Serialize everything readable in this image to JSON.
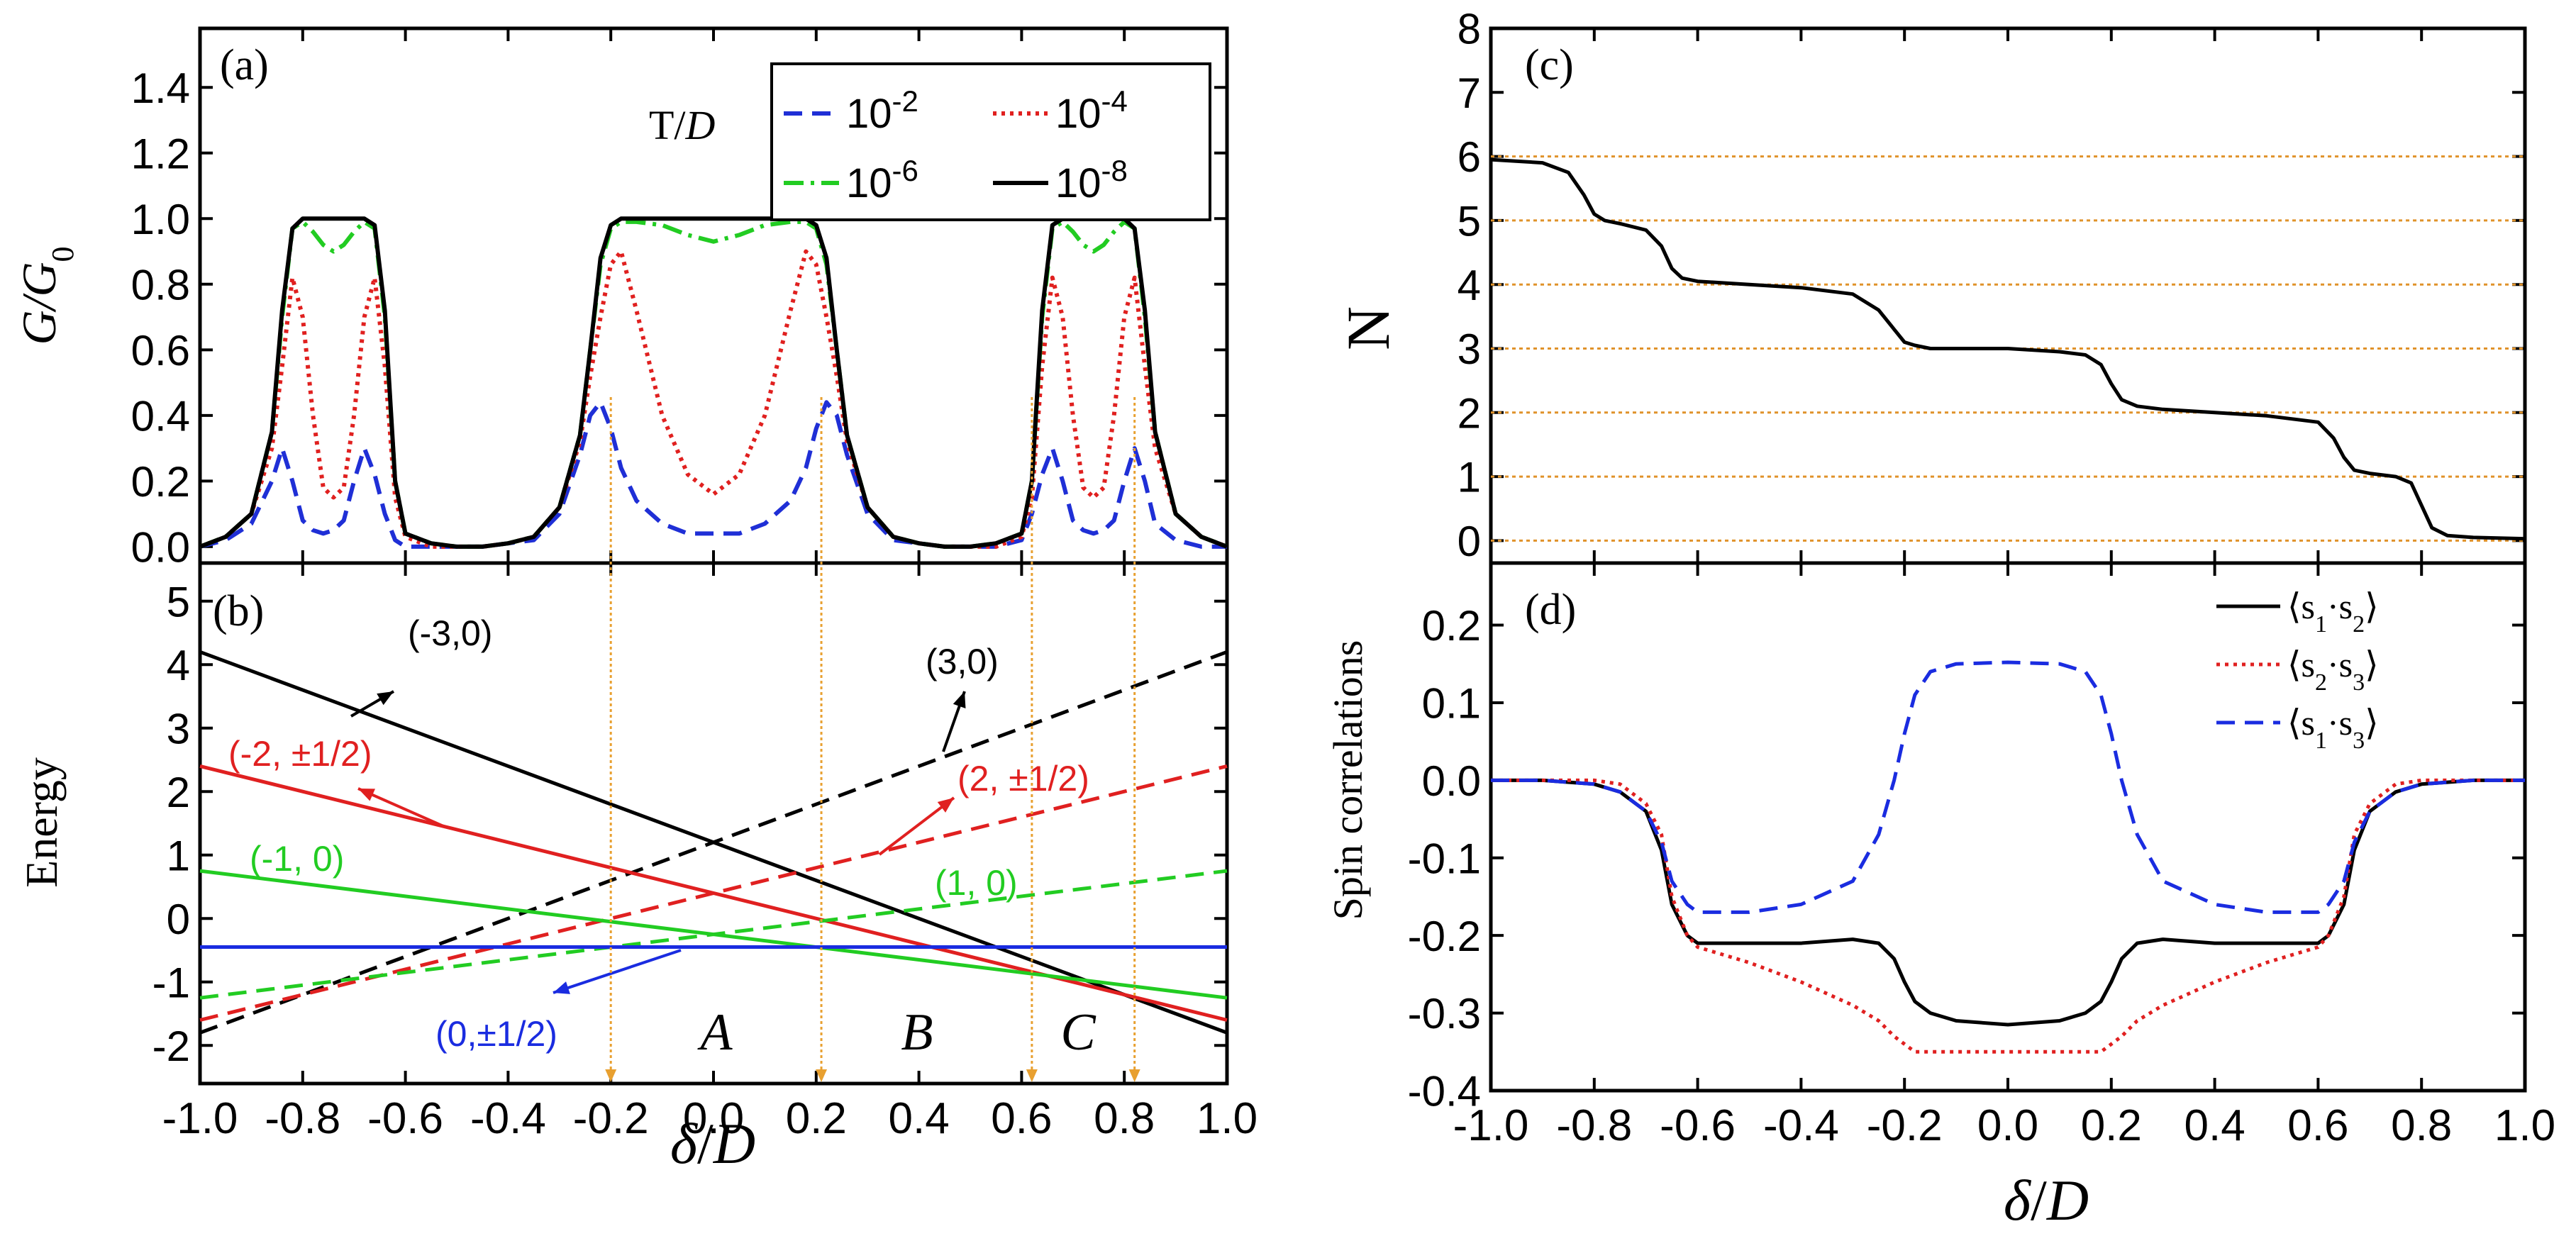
{
  "figure": {
    "bottom_xlabel_left": "δ/D",
    "bottom_xlabel_right": "δ/D"
  },
  "chart_data": [
    {
      "panel": "(a)",
      "type": "line",
      "ylabel": "G/G0",
      "ylabel_main": "G/G",
      "ylabel_sub": "0",
      "xlim": [
        -1.0,
        1.0
      ],
      "ylim": [
        -0.05,
        1.58
      ],
      "yticks": [
        0.0,
        0.2,
        0.4,
        0.6,
        0.8,
        1.0,
        1.2,
        1.4
      ],
      "ytick_labels": [
        "0.0",
        "0.2",
        "0.4",
        "0.6",
        "0.8",
        "1.0",
        "1.2",
        "1.4"
      ],
      "legend_title": "T/D",
      "legend_title_main": "T/",
      "legend_title_italic": "D",
      "x": [
        -1.0,
        -0.95,
        -0.9,
        -0.86,
        -0.84,
        -0.82,
        -0.8,
        -0.78,
        -0.76,
        -0.74,
        -0.72,
        -0.7,
        -0.68,
        -0.66,
        -0.64,
        -0.62,
        -0.6,
        -0.55,
        -0.5,
        -0.45,
        -0.4,
        -0.35,
        -0.3,
        -0.26,
        -0.24,
        -0.22,
        -0.2,
        -0.18,
        -0.15,
        -0.1,
        -0.05,
        0.0,
        0.05,
        0.1,
        0.15,
        0.18,
        0.2,
        0.22,
        0.24,
        0.26,
        0.3,
        0.35,
        0.4,
        0.45,
        0.5,
        0.55,
        0.6,
        0.62,
        0.64,
        0.66,
        0.68,
        0.7,
        0.72,
        0.74,
        0.76,
        0.78,
        0.8,
        0.82,
        0.84,
        0.86,
        0.9,
        0.95,
        1.0
      ],
      "series": [
        {
          "name": "10^-2",
          "base": "10",
          "exp": "-2",
          "style": "dashed",
          "color": "#1f2fd6",
          "values": [
            0,
            0.02,
            0.07,
            0.2,
            0.3,
            0.2,
            0.08,
            0.05,
            0.04,
            0.05,
            0.08,
            0.2,
            0.3,
            0.22,
            0.1,
            0.02,
            0,
            0,
            0,
            0,
            0.01,
            0.02,
            0.1,
            0.28,
            0.4,
            0.44,
            0.36,
            0.24,
            0.14,
            0.07,
            0.04,
            0.04,
            0.04,
            0.07,
            0.14,
            0.24,
            0.36,
            0.44,
            0.4,
            0.28,
            0.1,
            0.02,
            0.01,
            0,
            0,
            0,
            0.02,
            0.1,
            0.22,
            0.3,
            0.2,
            0.08,
            0.05,
            0.04,
            0.05,
            0.08,
            0.2,
            0.3,
            0.2,
            0.07,
            0.02,
            0,
            0
          ]
        },
        {
          "name": "10^-4",
          "base": "10",
          "exp": "-4",
          "style": "dotted",
          "color": "#e0201f",
          "values": [
            0,
            0.03,
            0.1,
            0.3,
            0.55,
            0.82,
            0.7,
            0.4,
            0.18,
            0.15,
            0.18,
            0.4,
            0.7,
            0.82,
            0.55,
            0.15,
            0.03,
            0,
            0,
            0,
            0.01,
            0.03,
            0.12,
            0.32,
            0.52,
            0.7,
            0.86,
            0.9,
            0.72,
            0.4,
            0.22,
            0.16,
            0.22,
            0.4,
            0.72,
            0.9,
            0.86,
            0.7,
            0.52,
            0.32,
            0.12,
            0.03,
            0.01,
            0,
            0,
            0,
            0.03,
            0.15,
            0.55,
            0.82,
            0.7,
            0.4,
            0.18,
            0.15,
            0.18,
            0.4,
            0.7,
            0.82,
            0.55,
            0.3,
            0.1,
            0.03,
            0
          ]
        },
        {
          "name": "10^-6",
          "base": "10",
          "exp": "-6",
          "style": "dashdot",
          "color": "#22cc22",
          "values": [
            0,
            0.03,
            0.1,
            0.35,
            0.7,
            0.97,
            0.99,
            0.96,
            0.92,
            0.9,
            0.92,
            0.96,
            0.99,
            0.97,
            0.7,
            0.2,
            0.04,
            0.01,
            0,
            0,
            0.01,
            0.03,
            0.12,
            0.34,
            0.6,
            0.86,
            0.97,
            0.99,
            0.99,
            0.98,
            0.95,
            0.93,
            0.95,
            0.98,
            0.99,
            0.99,
            0.97,
            0.86,
            0.6,
            0.34,
            0.12,
            0.03,
            0.01,
            0,
            0,
            0.01,
            0.04,
            0.2,
            0.7,
            0.97,
            0.99,
            0.96,
            0.92,
            0.9,
            0.92,
            0.96,
            0.99,
            0.97,
            0.7,
            0.35,
            0.1,
            0.03,
            0
          ]
        },
        {
          "name": "10^-8",
          "base": "10",
          "exp": "-8",
          "style": "solid",
          "color": "#000000",
          "values": [
            0,
            0.03,
            0.1,
            0.35,
            0.72,
            0.97,
            1.0,
            1.0,
            1.0,
            1.0,
            1.0,
            1.0,
            1.0,
            0.98,
            0.72,
            0.2,
            0.04,
            0.01,
            0,
            0,
            0.01,
            0.03,
            0.12,
            0.34,
            0.6,
            0.88,
            0.98,
            1.0,
            1.0,
            1.0,
            1.0,
            1.0,
            1.0,
            1.0,
            1.0,
            1.0,
            0.98,
            0.88,
            0.6,
            0.34,
            0.12,
            0.03,
            0.01,
            0,
            0,
            0.01,
            0.04,
            0.2,
            0.72,
            0.98,
            1.0,
            1.0,
            1.0,
            1.0,
            1.0,
            1.0,
            1.0,
            0.97,
            0.72,
            0.35,
            0.1,
            0.03,
            0
          ]
        }
      ]
    },
    {
      "panel": "(b)",
      "type": "line",
      "ylabel": "Energy",
      "xlim": [
        -1.0,
        1.0
      ],
      "ylim": [
        -2.6,
        5.6
      ],
      "xticks": [
        -1.0,
        -0.8,
        -0.6,
        -0.4,
        -0.2,
        0.0,
        0.2,
        0.4,
        0.6,
        0.8,
        1.0
      ],
      "xtick_labels": [
        "-1.0",
        "-0.8",
        "-0.6",
        "-0.4",
        "-0.2",
        "0.0",
        "0.2",
        "0.4",
        "0.6",
        "0.8",
        "1.0"
      ],
      "yticks": [
        -2,
        -1,
        0,
        1,
        2,
        3,
        4,
        5
      ],
      "ytick_labels": [
        "-2",
        "-1",
        "0",
        "1",
        "2",
        "3",
        "4",
        "5"
      ],
      "lines": [
        {
          "label": "(-3,0)",
          "style": "solid",
          "color": "#000000",
          "x": [
            -1.0,
            1.0
          ],
          "y": [
            4.2,
            -1.8
          ]
        },
        {
          "label": "(3,0)",
          "style": "dashed",
          "color": "#000000",
          "x": [
            -1.0,
            1.0
          ],
          "y": [
            -1.8,
            4.2
          ]
        },
        {
          "label": "(-2, ±1/2)",
          "style": "solid",
          "color": "#e02020",
          "x": [
            -1.0,
            1.0
          ],
          "y": [
            2.4,
            -1.6
          ]
        },
        {
          "label": "(2, ±1/2)",
          "style": "dashed",
          "color": "#e02020",
          "x": [
            -1.0,
            1.0
          ],
          "y": [
            -1.6,
            2.4
          ]
        },
        {
          "label": "(-1, 0)",
          "style": "solid",
          "color": "#22cc22",
          "x": [
            -1.0,
            1.0
          ],
          "y": [
            0.75,
            -1.25
          ]
        },
        {
          "label": "(1, 0)",
          "style": "dashed",
          "color": "#22cc22",
          "x": [
            -1.0,
            1.0
          ],
          "y": [
            -1.25,
            0.75
          ]
        },
        {
          "label": "(0,±1/2)",
          "style": "solid",
          "color": "#1a2ce0",
          "x": [
            -1.0,
            1.0
          ],
          "y": [
            -0.45,
            -0.45
          ]
        }
      ],
      "region_labels": [
        "A",
        "B",
        "C"
      ],
      "vertical_markers_x": [
        -0.2,
        0.21,
        0.62,
        0.82
      ]
    },
    {
      "panel": "(c)",
      "type": "line",
      "ylabel": "N",
      "xlim": [
        -1.0,
        1.0
      ],
      "ylim": [
        -0.35,
        8.0
      ],
      "yticks": [
        0,
        1,
        2,
        3,
        4,
        5,
        6,
        7,
        8
      ],
      "ytick_labels": [
        "0",
        "1",
        "2",
        "3",
        "4",
        "5",
        "6",
        "7",
        "8"
      ],
      "reference_lines_y": [
        0,
        1,
        2,
        3,
        4,
        5,
        6
      ],
      "x": [
        -1.0,
        -0.9,
        -0.85,
        -0.82,
        -0.8,
        -0.78,
        -0.75,
        -0.7,
        -0.67,
        -0.65,
        -0.63,
        -0.6,
        -0.5,
        -0.4,
        -0.3,
        -0.25,
        -0.22,
        -0.2,
        -0.18,
        -0.15,
        -0.1,
        0.0,
        0.1,
        0.15,
        0.18,
        0.2,
        0.22,
        0.25,
        0.3,
        0.4,
        0.5,
        0.6,
        0.63,
        0.65,
        0.67,
        0.7,
        0.75,
        0.78,
        0.8,
        0.82,
        0.85,
        0.9,
        1.0
      ],
      "values": [
        5.95,
        5.9,
        5.75,
        5.4,
        5.1,
        5.0,
        4.95,
        4.85,
        4.6,
        4.25,
        4.1,
        4.05,
        4.0,
        3.95,
        3.85,
        3.6,
        3.3,
        3.1,
        3.05,
        3.0,
        3.0,
        3.0,
        2.95,
        2.9,
        2.75,
        2.45,
        2.2,
        2.1,
        2.05,
        2.0,
        1.95,
        1.85,
        1.6,
        1.3,
        1.1,
        1.05,
        1.0,
        0.9,
        0.55,
        0.2,
        0.08,
        0.05,
        0.03
      ]
    },
    {
      "panel": "(d)",
      "type": "line",
      "ylabel": "Spin correlations",
      "xlim": [
        -1.0,
        1.0
      ],
      "ylim": [
        -0.4,
        0.28
      ],
      "xticks": [
        -1.0,
        -0.8,
        -0.6,
        -0.4,
        -0.2,
        0.0,
        0.2,
        0.4,
        0.6,
        0.8,
        1.0
      ],
      "xtick_labels": [
        "-1.0",
        "-0.8",
        "-0.6",
        "-0.4",
        "-0.2",
        "0.0",
        "0.2",
        "0.4",
        "0.6",
        "0.8",
        "1.0"
      ],
      "yticks": [
        -0.4,
        -0.3,
        -0.2,
        -0.1,
        0.0,
        0.1,
        0.2
      ],
      "ytick_labels": [
        "-0.4",
        "-0.3",
        "-0.2",
        "-0.1",
        "0.0",
        "0.1",
        "0.2"
      ],
      "x": [
        -1.0,
        -0.9,
        -0.8,
        -0.75,
        -0.7,
        -0.67,
        -0.65,
        -0.62,
        -0.6,
        -0.55,
        -0.5,
        -0.4,
        -0.3,
        -0.25,
        -0.22,
        -0.2,
        -0.18,
        -0.15,
        -0.1,
        0.0,
        0.1,
        0.15,
        0.18,
        0.2,
        0.22,
        0.25,
        0.3,
        0.4,
        0.5,
        0.55,
        0.6,
        0.62,
        0.65,
        0.67,
        0.7,
        0.75,
        0.8,
        0.9,
        1.0
      ],
      "series": [
        {
          "name": "⟨s1·s2⟩",
          "a": "1",
          "b": "2",
          "style": "solid",
          "color": "#000000",
          "values": [
            0,
            0,
            -0.005,
            -0.015,
            -0.04,
            -0.09,
            -0.16,
            -0.2,
            -0.21,
            -0.21,
            -0.21,
            -0.21,
            -0.205,
            -0.21,
            -0.23,
            -0.26,
            -0.285,
            -0.3,
            -0.31,
            -0.315,
            -0.31,
            -0.3,
            -0.285,
            -0.26,
            -0.23,
            -0.21,
            -0.205,
            -0.21,
            -0.21,
            -0.21,
            -0.21,
            -0.2,
            -0.16,
            -0.09,
            -0.04,
            -0.015,
            -0.005,
            0,
            0
          ]
        },
        {
          "name": "⟨s2·s3⟩",
          "a": "2",
          "b": "3",
          "style": "dotted",
          "color": "#e02020",
          "values": [
            0,
            0,
            0,
            -0.005,
            -0.03,
            -0.07,
            -0.15,
            -0.2,
            -0.215,
            -0.225,
            -0.235,
            -0.26,
            -0.29,
            -0.31,
            -0.33,
            -0.34,
            -0.35,
            -0.35,
            -0.35,
            -0.35,
            -0.35,
            -0.35,
            -0.35,
            -0.34,
            -0.33,
            -0.31,
            -0.29,
            -0.26,
            -0.235,
            -0.225,
            -0.215,
            -0.2,
            -0.15,
            -0.07,
            -0.03,
            -0.005,
            0,
            0,
            0
          ]
        },
        {
          "name": "⟨s1·s3⟩",
          "a": "1",
          "b": "3",
          "style": "dashed",
          "color": "#1a2ce0",
          "values": [
            0,
            0,
            -0.005,
            -0.015,
            -0.04,
            -0.08,
            -0.13,
            -0.16,
            -0.17,
            -0.17,
            -0.17,
            -0.16,
            -0.13,
            -0.07,
            0.0,
            0.06,
            0.11,
            0.14,
            0.15,
            0.152,
            0.15,
            0.14,
            0.11,
            0.06,
            0.0,
            -0.07,
            -0.13,
            -0.16,
            -0.17,
            -0.17,
            -0.17,
            -0.16,
            -0.13,
            -0.08,
            -0.04,
            -0.015,
            -0.005,
            0,
            0
          ]
        }
      ]
    }
  ]
}
